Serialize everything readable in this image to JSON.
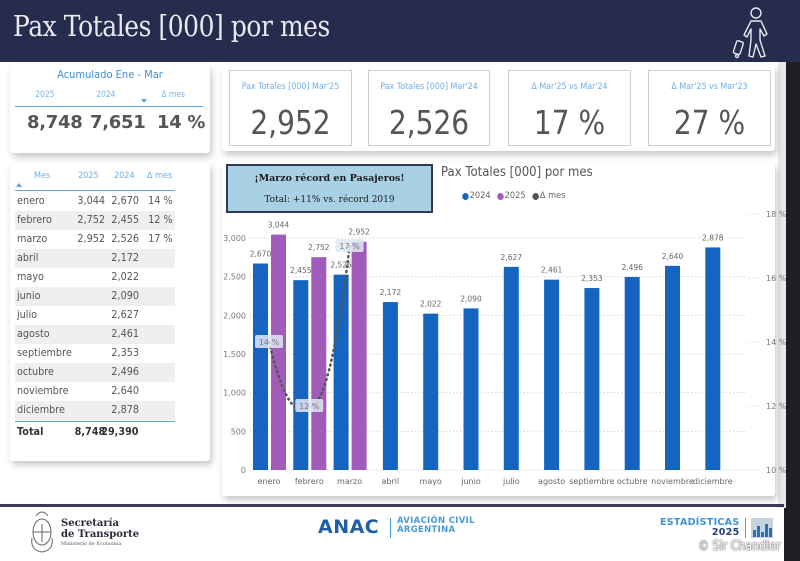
{
  "header": {
    "title": "Pax Totales [000] por mes",
    "icon": "traveler-with-suitcase-icon"
  },
  "summary": {
    "title": "Acumulado Ene - Mar",
    "columns": [
      "2025",
      "2024",
      "Δ mes"
    ],
    "values": [
      "8,748",
      "7,651",
      "14 %"
    ]
  },
  "kpis": [
    {
      "label": "Pax Totales [000] Mar'25",
      "value": "2,952"
    },
    {
      "label": "Pax Totales [000] Mar'24",
      "value": "2,526"
    },
    {
      "label": "Δ Mar'25 vs Mar'24",
      "value": "17 %"
    },
    {
      "label": "Δ Mar'25 vs Mar'23",
      "value": "27 %"
    }
  ],
  "table": {
    "columns": [
      "Mes",
      "2025",
      "2024",
      "Δ mes"
    ],
    "rows": [
      {
        "mes": "enero",
        "y2025": "3,044",
        "y2024": "2,670",
        "delta": "14 %"
      },
      {
        "mes": "febrero",
        "y2025": "2,752",
        "y2024": "2,455",
        "delta": "12 %"
      },
      {
        "mes": "marzo",
        "y2025": "2,952",
        "y2024": "2,526",
        "delta": "17 %"
      },
      {
        "mes": "abril",
        "y2025": "",
        "y2024": "2,172",
        "delta": ""
      },
      {
        "mes": "mayo",
        "y2025": "",
        "y2024": "2,022",
        "delta": ""
      },
      {
        "mes": "junio",
        "y2025": "",
        "y2024": "2,090",
        "delta": ""
      },
      {
        "mes": "julio",
        "y2025": "",
        "y2024": "2,627",
        "delta": ""
      },
      {
        "mes": "agosto",
        "y2025": "",
        "y2024": "2,461",
        "delta": ""
      },
      {
        "mes": "septiembre",
        "y2025": "",
        "y2024": "2,353",
        "delta": ""
      },
      {
        "mes": "octubre",
        "y2025": "",
        "y2024": "2,496",
        "delta": ""
      },
      {
        "mes": "noviembre",
        "y2025": "",
        "y2024": "2,640",
        "delta": ""
      },
      {
        "mes": "diciembre",
        "y2025": "",
        "y2024": "2,878",
        "delta": ""
      }
    ],
    "total": {
      "mes": "Total",
      "y2025": "8,748",
      "y2024": "29,390",
      "delta": ""
    }
  },
  "callout": {
    "line1": "¡Marzo récord en Pasajeros!",
    "line2": "Total: +11% vs. récord 2019"
  },
  "colors": {
    "header_bg": "#262c4e",
    "series_2024": "#1565c0",
    "series_2025": "#a05cb8",
    "series_delta": "#555555",
    "accent_blue": "#5ba5e3",
    "callout_bg": "#a9d1e5"
  },
  "chart_data": {
    "type": "bar",
    "title": "Pax Totales [000] por mes",
    "categories": [
      "enero",
      "febrero",
      "marzo",
      "abril",
      "mayo",
      "junio",
      "julio",
      "agosto",
      "septiembre",
      "octubre",
      "noviembre",
      "diciembre"
    ],
    "series": [
      {
        "name": "2024",
        "type": "bar",
        "values": [
          2670,
          2455,
          2526,
          2172,
          2022,
          2090,
          2627,
          2461,
          2353,
          2496,
          2640,
          2878
        ],
        "labels": [
          "2,670",
          "2,455",
          "2,526",
          "2,172",
          "2,022",
          "2,090",
          "2,627",
          "2,461",
          "2,353",
          "2,496",
          "2,640",
          "2,878"
        ]
      },
      {
        "name": "2025",
        "type": "bar",
        "values": [
          3044,
          2752,
          2952,
          null,
          null,
          null,
          null,
          null,
          null,
          null,
          null,
          null
        ],
        "labels": [
          "3,044",
          "2,752",
          "2,952"
        ]
      },
      {
        "name": "Δ mes",
        "type": "line",
        "axis": "right",
        "values": [
          14,
          12,
          17,
          null,
          null,
          null,
          null,
          null,
          null,
          null,
          null,
          null
        ],
        "labels": [
          "14 %",
          "12 %",
          "17 %"
        ]
      }
    ],
    "legend": [
      "2024",
      "2025",
      "Δ mes"
    ],
    "legend_position": "top",
    "y_left": {
      "min": 0,
      "max": 3000,
      "ticks": [
        0,
        500,
        1000,
        1500,
        2000,
        2500,
        3000
      ],
      "tick_labels": [
        "0",
        "500",
        "1,000",
        "1,500",
        "2,000",
        "2,500",
        "3,000"
      ]
    },
    "y_right": {
      "min": 10,
      "max": 18,
      "ticks": [
        10,
        12,
        14,
        16,
        18
      ],
      "tick_labels": [
        "10 %",
        "12 %",
        "14 %",
        "16 %",
        "18 %"
      ]
    },
    "grid": true,
    "xlabel": "",
    "ylabel": ""
  },
  "footer": {
    "secretaria_l1": "Secretaría",
    "secretaria_l2": "de Transporte",
    "secretaria_l3": "Ministerio de Economía",
    "anac": "ANAC",
    "anac_sub1": "AVIACIÓN CIVIL",
    "anac_sub2": "ARGENTINA",
    "estadisticas": "ESTADÍSTICAS",
    "estadisticas_year": "2025",
    "watermark": "© Sir Chandler"
  }
}
